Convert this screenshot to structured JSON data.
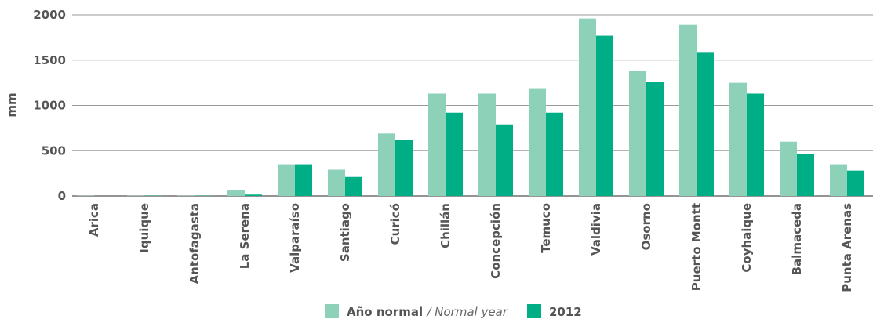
{
  "chart_data": {
    "type": "bar",
    "ylabel": "mm",
    "ylim": [
      0,
      2000
    ],
    "yticks": [
      0,
      500,
      1000,
      1500,
      2000
    ],
    "grid": true,
    "legend_position": "bottom-center",
    "categories": [
      "Arica",
      "Iquique",
      "Antofagasta",
      "La Serena",
      "Valparaíso",
      "Santiago",
      "Curicó",
      "Chillán",
      "Concepción",
      "Temuco",
      "Valdivia",
      "Osorno",
      "Puerto Montt",
      "Coyhaique",
      "Balmaceda",
      "Punta Arenas"
    ],
    "series": [
      {
        "name": "Año normal",
        "name_suffix": "/ Normal year",
        "color": "#8dd1b9",
        "values": [
          3,
          3,
          3,
          60,
          350,
          290,
          690,
          1130,
          1130,
          1190,
          1960,
          1380,
          1890,
          1250,
          600,
          350
        ]
      },
      {
        "name": "2012",
        "color": "#00ae85",
        "values": [
          0,
          3,
          3,
          15,
          350,
          210,
          620,
          920,
          790,
          920,
          1770,
          1260,
          1590,
          1130,
          460,
          280
        ]
      }
    ]
  }
}
